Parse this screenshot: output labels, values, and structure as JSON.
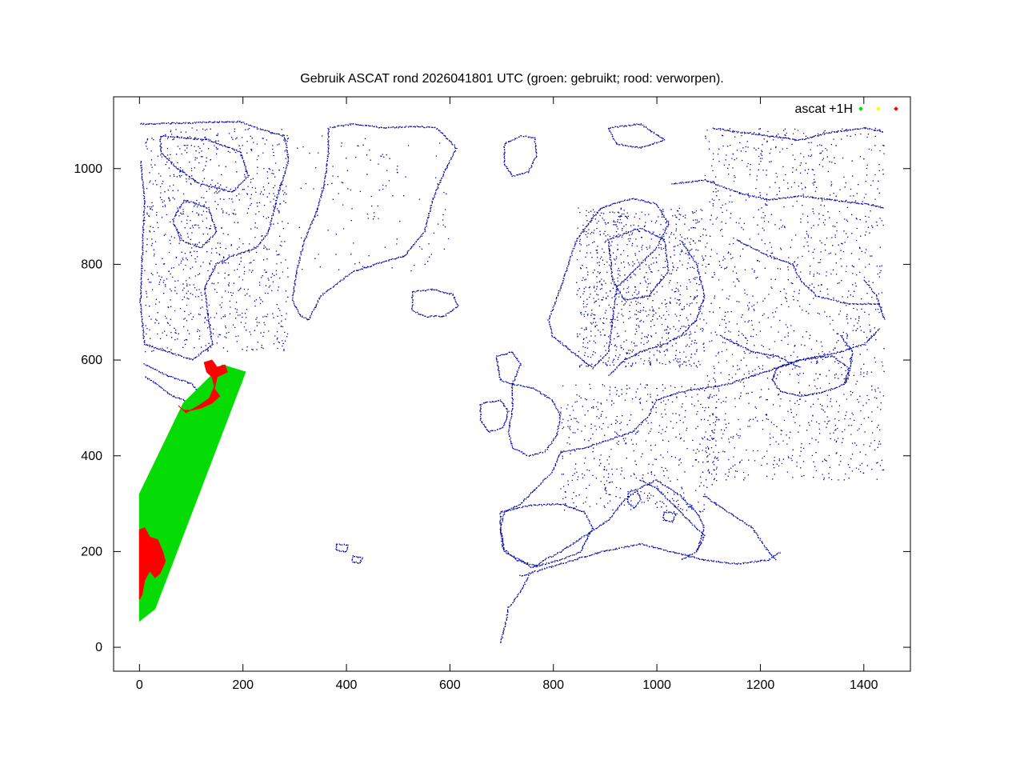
{
  "chart_data": {
    "type": "scatter",
    "title": "Gebruik ASCAT rond 2026041801 UTC (groen: gebruikt; rood: verworpen).",
    "xlabel": "",
    "ylabel": "",
    "xlim": [
      -50,
      1490
    ],
    "ylim": [
      -50,
      1150
    ],
    "x_ticks": [
      0,
      200,
      400,
      600,
      800,
      1000,
      1200,
      1400
    ],
    "y_ticks": [
      0,
      200,
      400,
      600,
      800,
      1000
    ],
    "grid": false,
    "legend": {
      "placement": "top-right",
      "label": "ascat +1H"
    },
    "series": [
      {
        "name": "ascat +1H",
        "status": "gebruikt",
        "color": "#00e000",
        "swath_polygon": [
          [
            0,
            55
          ],
          [
            0,
            320
          ],
          [
            85,
            510
          ],
          [
            160,
            590
          ],
          [
            205,
            575
          ],
          [
            30,
            80
          ]
        ]
      },
      {
        "status": "onbeslist",
        "color": "#ffff00",
        "points": []
      },
      {
        "status": "verworpen",
        "color": "#ff0000",
        "regions": [
          {
            "polygon": [
              [
                0,
                100
              ],
              [
                0,
                245
              ],
              [
                10,
                250
              ],
              [
                20,
                230
              ],
              [
                35,
                225
              ],
              [
                45,
                200
              ],
              [
                50,
                180
              ],
              [
                40,
                155
              ],
              [
                30,
                145
              ],
              [
                20,
                160
              ],
              [
                10,
                140
              ],
              [
                5,
                110
              ]
            ]
          },
          {
            "polygon": [
              [
                75,
                505
              ],
              [
                90,
                490
              ],
              [
                115,
                505
              ],
              [
                135,
                520
              ],
              [
                145,
                545
              ],
              [
                140,
                565
              ],
              [
                130,
                575
              ],
              [
                125,
                595
              ],
              [
                140,
                600
              ],
              [
                150,
                585
              ],
              [
                165,
                590
              ],
              [
                170,
                575
              ],
              [
                150,
                565
              ],
              [
                145,
                540
              ],
              [
                155,
                525
              ],
              [
                140,
                510
              ],
              [
                120,
                500
              ],
              [
                100,
                495
              ],
              [
                85,
                495
              ]
            ]
          }
        ]
      }
    ],
    "background": {
      "coastline_color": "#0000a0",
      "description_hidden": true
    }
  }
}
